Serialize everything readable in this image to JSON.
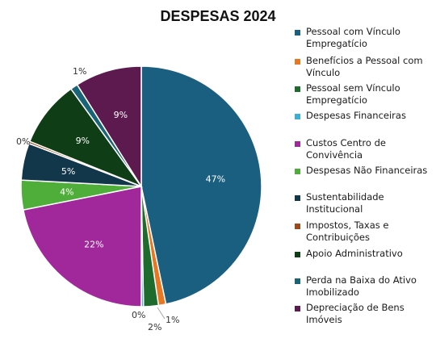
{
  "chart_data": {
    "type": "pie",
    "title": "DESPESAS 2024",
    "legend_position": "right",
    "slices": [
      {
        "label": "Pessoal com Vínculo Empregatício",
        "value": 47,
        "display": "47%",
        "color": "#1a5f80"
      },
      {
        "label": "Benefícios a Pessoal com Vínculo",
        "value": 1,
        "display": "1%",
        "color": "#e87722"
      },
      {
        "label": "Pessoal sem Vínculo Empregatício",
        "value": 2,
        "display": "2%",
        "color": "#1f6b2e"
      },
      {
        "label": "Despesas Financeiras",
        "value": 0.3,
        "display": "0%",
        "color": "#3ab0d8"
      },
      {
        "label": "Custos Centro de Convivência",
        "value": 22,
        "display": "22%",
        "color": "#a0289a"
      },
      {
        "label": "Despesas Não Financeiras",
        "value": 4,
        "display": "4%",
        "color": "#4fae3a"
      },
      {
        "label": "Sustentabilidade Institucional",
        "value": 5,
        "display": "5%",
        "color": "#12364a"
      },
      {
        "label": "Impostos, Taxas e Contribuições",
        "value": 0.3,
        "display": "0%",
        "color": "#9c4a1a"
      },
      {
        "label": "Apoio Administrativo",
        "value": 9,
        "display": "9%",
        "color": "#0f3d16"
      },
      {
        "label": "Perda na Baixa do Ativo Imobilizado",
        "value": 1,
        "display": "1%",
        "color": "#1a6478"
      },
      {
        "label": "Depreciação de Bens Imóveis",
        "value": 9,
        "display": "9%",
        "color": "#5c1a4e"
      }
    ]
  },
  "legend": {
    "items": [
      {
        "lines": [
          "Pessoal com Vínculo",
          "Empregatício"
        ]
      },
      {
        "lines": [
          "Benefícios a Pessoal com",
          "Vínculo"
        ]
      },
      {
        "lines": [
          "Pessoal sem Vínculo",
          "Empregatício"
        ]
      },
      {
        "lines": [
          "Despesas Financeiras"
        ]
      },
      {
        "lines": [
          "Custos Centro de Convivência"
        ]
      },
      {
        "lines": [
          "Despesas Não Financeiras"
        ]
      },
      {
        "lines": [
          "Sustentabilidade Institucional"
        ]
      },
      {
        "lines": [
          "Impostos, Taxas e",
          "Contribuições"
        ]
      },
      {
        "lines": [
          "Apoio Administrativo"
        ]
      },
      {
        "lines": [
          "Perda na Baixa do Ativo",
          "Imobilizado"
        ]
      },
      {
        "lines": [
          "Depreciação de Bens Imóveis"
        ]
      }
    ]
  }
}
